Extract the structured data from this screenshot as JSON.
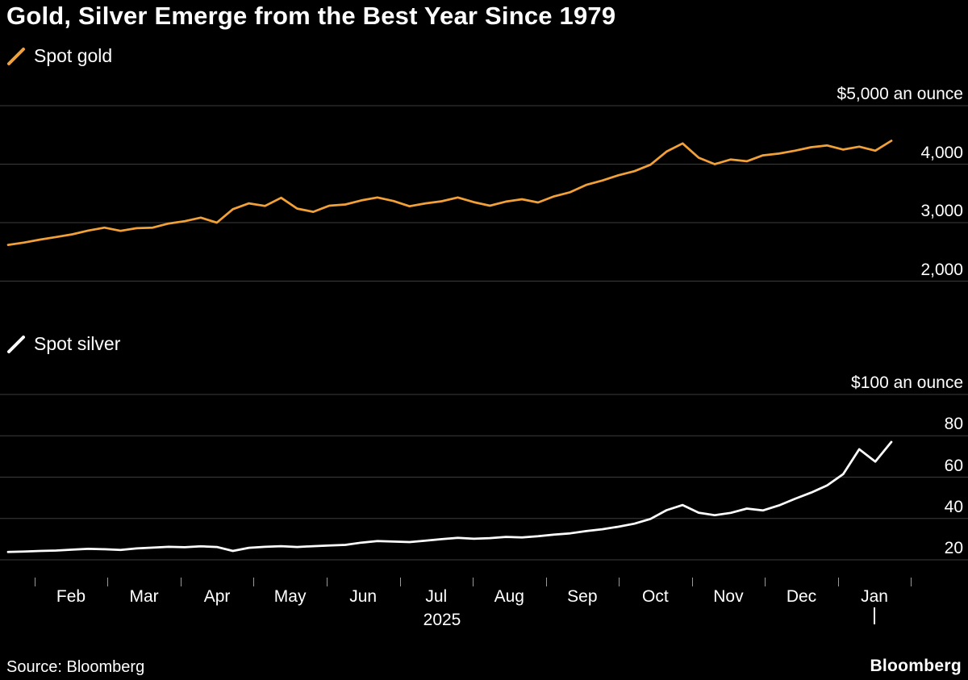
{
  "title": "Gold, Silver Emerge from the Best Year Since 1979",
  "source": "Source: Bloomberg",
  "brand": "Bloomberg",
  "colors": {
    "background": "#000000",
    "gold": "#F2A138",
    "silver": "#FFFFFF",
    "grid": "#3d3d3d",
    "tick": "#9a9a9a"
  },
  "x_axis": {
    "month_labels": [
      "Feb",
      "Mar",
      "Apr",
      "May",
      "Jun",
      "Jul",
      "Aug",
      "Sep",
      "Oct",
      "Nov",
      "Dec",
      "Jan"
    ],
    "year_label": "2025"
  },
  "chart_data": [
    {
      "type": "line",
      "name": "Spot gold",
      "unit_label": "$5,000 an ounce",
      "color": "#F2A138",
      "ylim": [
        2000,
        5000
      ],
      "x_start": "Jan 2025",
      "x_end": "Jan 2026",
      "frequency": "weekly",
      "grid": true,
      "legend_position": "top-left",
      "y_ticks": [
        {
          "value": 5000,
          "label": "$5,000 an ounce"
        },
        {
          "value": 4000,
          "label": "4,000"
        },
        {
          "value": 3000,
          "label": "3,000"
        },
        {
          "value": 2000,
          "label": "2,000"
        }
      ],
      "values": [
        2620,
        2660,
        2710,
        2755,
        2800,
        2865,
        2915,
        2860,
        2905,
        2915,
        2985,
        3025,
        3085,
        3000,
        3230,
        3330,
        3285,
        3425,
        3240,
        3185,
        3290,
        3310,
        3380,
        3430,
        3370,
        3280,
        3330,
        3365,
        3430,
        3350,
        3290,
        3360,
        3400,
        3345,
        3450,
        3520,
        3645,
        3720,
        3810,
        3880,
        3990,
        4215,
        4355,
        4110,
        4000,
        4080,
        4050,
        4150,
        4180,
        4230,
        4290,
        4320,
        4250,
        4300,
        4230,
        4400
      ]
    },
    {
      "type": "line",
      "name": "Spot silver",
      "unit_label": "$100 an ounce",
      "color": "#FFFFFF",
      "ylim": [
        20,
        100
      ],
      "x_start": "Jan 2025",
      "x_end": "Jan 2026",
      "frequency": "weekly",
      "grid": true,
      "legend_position": "top-left",
      "y_ticks": [
        {
          "value": 100,
          "label": "$100 an ounce"
        },
        {
          "value": 80,
          "label": "80"
        },
        {
          "value": 60,
          "label": "60"
        },
        {
          "value": 40,
          "label": "40"
        },
        {
          "value": 20,
          "label": "20"
        }
      ],
      "values": [
        23.8,
        24.0,
        24.3,
        24.5,
        24.9,
        25.3,
        25.1,
        24.8,
        25.5,
        25.9,
        26.3,
        26.1,
        26.5,
        26.2,
        24.3,
        25.8,
        26.3,
        26.6,
        26.2,
        26.6,
        26.9,
        27.2,
        28.3,
        29.1,
        28.8,
        28.6,
        29.3,
        30.0,
        30.6,
        30.2,
        30.5,
        31.1,
        30.8,
        31.4,
        32.2,
        32.8,
        33.9,
        34.8,
        36.0,
        37.5,
        39.8,
        44.0,
        46.5,
        42.8,
        41.6,
        42.7,
        44.8,
        43.9,
        46.3,
        49.5,
        52.5,
        56.0,
        61.5,
        73.5,
        67.5,
        77.0
      ]
    }
  ]
}
